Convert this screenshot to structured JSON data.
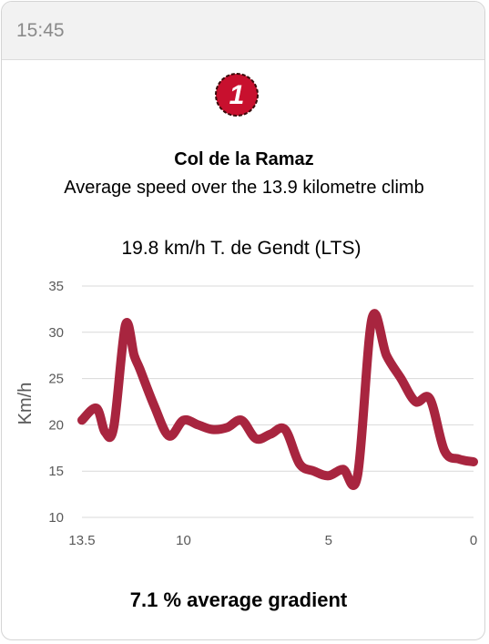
{
  "status_bar": {
    "time": "15:45"
  },
  "badge": {
    "number": "1",
    "color": "#c8102e"
  },
  "title": "Col de la Ramaz",
  "subtitle": "Average speed over the 13.9 kilometre climb",
  "record": "19.8 km/h T. de Gendt (LTS)",
  "footer": "7.1 % average gradient",
  "chart_data": {
    "type": "line",
    "ylabel": "Km/h",
    "xlabel": "",
    "ylim": [
      10,
      35
    ],
    "xlim": [
      13.5,
      0
    ],
    "x_reversed": true,
    "yticks": [
      10,
      15,
      20,
      25,
      30,
      35
    ],
    "xticks": [
      "13.5",
      "10",
      "5",
      "0"
    ],
    "xtick_values": [
      13.5,
      10,
      5,
      0
    ],
    "grid": true,
    "line_color": "#a8253f",
    "series": [
      {
        "name": "",
        "x": [
          13.5,
          13.0,
          12.7,
          12.4,
          12.0,
          11.7,
          11.5,
          11.0,
          10.5,
          10.0,
          9.5,
          9.0,
          8.5,
          8.0,
          7.5,
          7.0,
          6.5,
          6.0,
          5.5,
          5.0,
          4.5,
          4.0,
          3.5,
          3.0,
          2.5,
          2.0,
          1.5,
          1.0,
          0.5,
          0.0
        ],
        "y": [
          20.5,
          21.8,
          19.2,
          19.8,
          30.8,
          27.5,
          26.0,
          22.0,
          18.8,
          20.5,
          20.0,
          19.5,
          19.7,
          20.5,
          18.5,
          19.0,
          19.5,
          15.8,
          15.0,
          14.5,
          15.2,
          14.5,
          31.5,
          27.5,
          25.0,
          22.5,
          22.8,
          17.2,
          16.3,
          16.0
        ]
      }
    ]
  }
}
